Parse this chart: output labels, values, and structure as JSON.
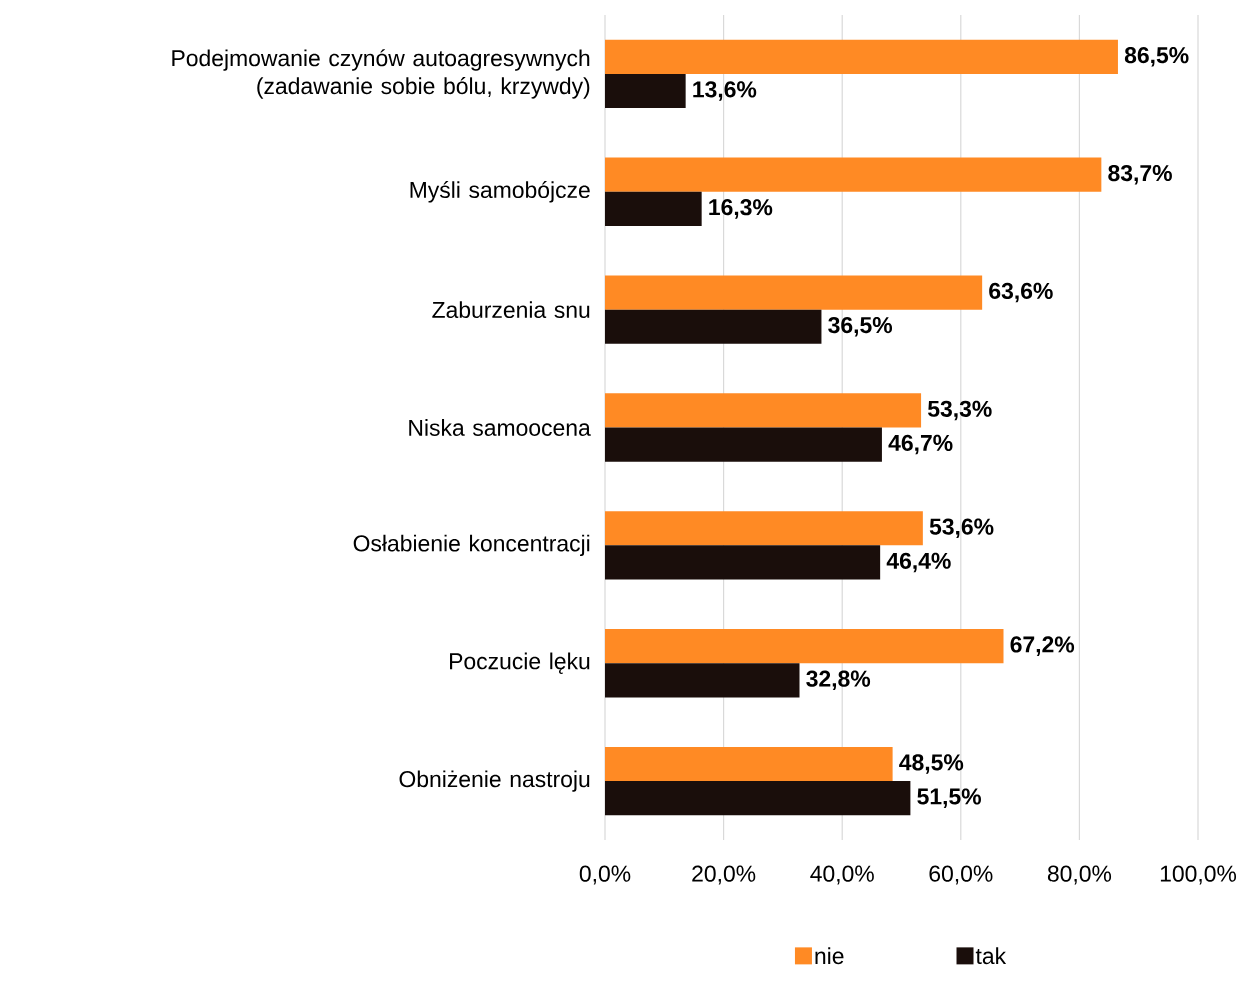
{
  "chart_data": {
    "type": "bar",
    "orientation": "horizontal",
    "categories": [
      "Podejmowanie czynów autoagresywnych (zadawanie sobie bólu, krzywdy)",
      "Myśli samobójcze",
      "Zaburzenia snu",
      "Niska samoocena",
      "Osłabienie koncentracji",
      "Poczucie lęku",
      "Obniżenie nastroju"
    ],
    "series": [
      {
        "name": "nie",
        "color": "#ff8a24",
        "values": [
          86.5,
          83.7,
          63.6,
          53.3,
          53.6,
          67.2,
          48.5
        ],
        "value_labels": [
          "86,5%",
          "83,7%",
          "63,6%",
          "53,3%",
          "53,6%",
          "67,2%",
          "48,5%"
        ]
      },
      {
        "name": "tak",
        "color": "#1a0e0b",
        "values": [
          13.6,
          16.3,
          36.5,
          46.7,
          46.4,
          32.8,
          51.5
        ],
        "value_labels": [
          "13,6%",
          "16,3%",
          "36,5%",
          "46,7%",
          "46,4%",
          "32,8%",
          "51,5%"
        ]
      }
    ],
    "xlim": [
      0,
      100
    ],
    "xticks": [
      {
        "value": 0,
        "label": "0,0%"
      },
      {
        "value": 20,
        "label": "20,0%"
      },
      {
        "value": 40,
        "label": "40,0%"
      },
      {
        "value": 60,
        "label": "60,0%"
      },
      {
        "value": 80,
        "label": "80,0%"
      },
      {
        "value": 100,
        "label": "100,0%"
      }
    ],
    "grid": "x",
    "legend": "bottom"
  }
}
